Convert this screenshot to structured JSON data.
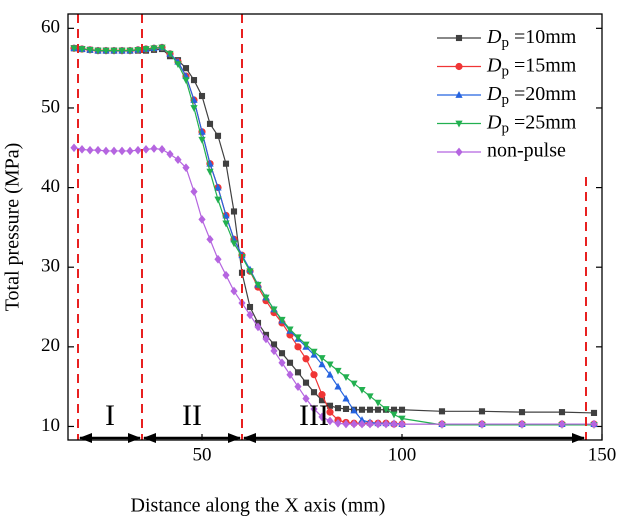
{
  "chart_data": {
    "type": "line",
    "x_label": "Distance along the X axis (mm)",
    "y_label": "Total pressure (MPa)",
    "x": [
      18,
      20,
      22,
      24,
      26,
      28,
      30,
      32,
      34,
      36,
      38,
      40,
      42,
      44,
      46,
      48,
      50,
      52,
      54,
      56,
      58,
      60,
      62,
      64,
      66,
      68,
      70,
      72,
      74,
      76,
      78,
      80,
      82,
      84,
      86,
      88,
      90,
      92,
      94,
      96,
      98,
      100,
      110,
      120,
      130,
      140,
      148
    ],
    "series": [
      {
        "name": "Dp =10mm",
        "color": "#404040",
        "marker": "square",
        "values": [
          57.5,
          57.4,
          57.3,
          57.2,
          57.2,
          57.2,
          57.2,
          57.2,
          57.2,
          57.2,
          57.3,
          57.4,
          56.5,
          56,
          55,
          53.5,
          51.5,
          48,
          46.5,
          43,
          37,
          29.3,
          25,
          23,
          21.5,
          20.3,
          19.2,
          18,
          16.8,
          15.5,
          14.3,
          13.3,
          12.6,
          12.3,
          12.2,
          12.1,
          12.1,
          12.1,
          12.1,
          12.1,
          12.1,
          12.1,
          11.9,
          11.9,
          11.8,
          11.8,
          11.7
        ]
      },
      {
        "name": "Dp =15mm",
        "color": "#f03535",
        "marker": "circle",
        "values": [
          57.5,
          57.4,
          57.3,
          57.2,
          57.2,
          57.2,
          57.2,
          57.2,
          57.3,
          57.4,
          57.5,
          57.6,
          56.8,
          55.8,
          54,
          51,
          47,
          43,
          40,
          36.5,
          33.5,
          31.5,
          29.5,
          27.5,
          25.8,
          24.3,
          23,
          21.5,
          20,
          18.5,
          16.5,
          14,
          11.8,
          10.8,
          10.5,
          10.4,
          10.4,
          10.4,
          10.4,
          10.4,
          10.3,
          10.3,
          10.3,
          10.3,
          10.3,
          10.3,
          10.3
        ]
      },
      {
        "name": "Dp =20mm",
        "color": "#2563e0",
        "marker": "triangle-up",
        "values": [
          57.5,
          57.4,
          57.3,
          57.2,
          57.2,
          57.2,
          57.2,
          57.2,
          57.3,
          57.4,
          57.5,
          57.6,
          56.8,
          55.8,
          54,
          51,
          47,
          43,
          40,
          36.5,
          33.5,
          31.5,
          29.7,
          27.8,
          26.2,
          24.7,
          23.3,
          22,
          21,
          20,
          19,
          17.8,
          16.5,
          15,
          13.5,
          12,
          10.8,
          10.5,
          10.4,
          10.4,
          10.4,
          10.3,
          10.3,
          10.3,
          10.3,
          10.3,
          10.3
        ]
      },
      {
        "name": "Dp =25mm",
        "color": "#22b050",
        "marker": "triangle-down",
        "values": [
          57.5,
          57.4,
          57.3,
          57.2,
          57.2,
          57.2,
          57.2,
          57.2,
          57.3,
          57.4,
          57.5,
          57.6,
          56.8,
          55.5,
          53.5,
          50,
          46,
          42,
          38.5,
          35.5,
          33,
          31.3,
          29.5,
          27.8,
          26.2,
          24.7,
          23.4,
          22.2,
          21.2,
          20.3,
          19.4,
          18.6,
          17.8,
          17,
          16.2,
          15.4,
          14.6,
          13.8,
          13,
          12.2,
          11.5,
          11,
          10.2,
          10.2,
          10.2,
          10.2,
          10.2
        ]
      },
      {
        "name": "non-pulse",
        "color": "#b565e0",
        "marker": "diamond",
        "values": [
          45,
          44.8,
          44.7,
          44.7,
          44.6,
          44.6,
          44.6,
          44.6,
          44.7,
          44.8,
          44.9,
          44.8,
          44.2,
          43.5,
          42.5,
          39.5,
          36,
          33.5,
          31,
          29,
          27,
          25.5,
          24,
          22.5,
          21,
          19.5,
          18,
          16.5,
          15,
          13.5,
          12.2,
          11.2,
          10.7,
          10.4,
          10.3,
          10.3,
          10.3,
          10.3,
          10.3,
          10.3,
          10.3,
          10.3,
          10.3,
          10.3,
          10.3,
          10.3,
          10.3
        ]
      }
    ],
    "regions": [
      {
        "label": "I",
        "from": 19,
        "to": 35
      },
      {
        "label": "II",
        "from": 35,
        "to": 60
      },
      {
        "label": "III",
        "from": 60,
        "to": 146
      }
    ],
    "xlim": [
      16.5,
      150
    ],
    "ylim": [
      8.3,
      61.8
    ],
    "xticks": [
      50,
      100,
      150
    ],
    "yticks": [
      10,
      20,
      30,
      40,
      50,
      60
    ],
    "legend": "upper right"
  }
}
